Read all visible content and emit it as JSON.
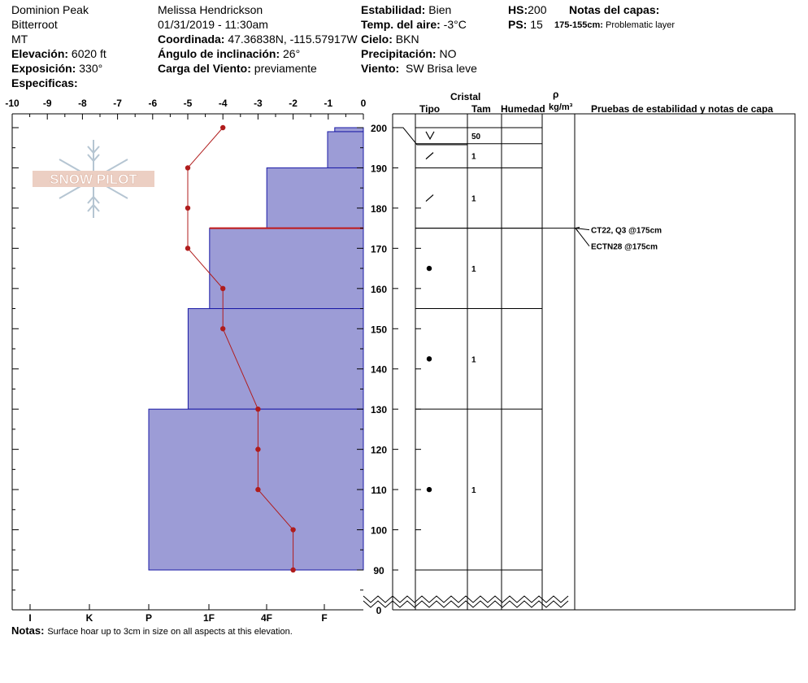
{
  "header": {
    "location": "Dominion Peak",
    "range": "Bitterroot",
    "state": "MT",
    "elevation_label": "Elevación:",
    "elevation_value": "6020 ft",
    "aspect_label": "Exposición:",
    "aspect_value": "330°",
    "specifics_label": "Especificas:",
    "observer": "Melissa Hendrickson",
    "datetime": "01/31/2019 - 11:30am",
    "coords_label": "Coordinada:",
    "coords_value": "47.36838N, -115.57917W",
    "incline_label": "Ángulo de inclinación:",
    "incline_value": "26°",
    "wind_load_label": "Carga del Viento:",
    "wind_load_value": "previamente",
    "stability_label": "Estabilidad:",
    "stability_value": "Bien",
    "air_temp_label": "Temp. del aire:",
    "air_temp_value": "-3°C",
    "sky_label": "Cielo:",
    "sky_value": "BKN",
    "precip_label": "Precipitación:",
    "precip_value": "NO",
    "wind_label": "Viento:",
    "wind_value": "SW Brisa leve",
    "hs_label": "HS:",
    "hs_value": "200",
    "ps_label": "PS:",
    "ps_value": "15",
    "layer_notes_label": "Notas del capas:",
    "layer_note_range": "175-155cm:",
    "layer_note_text": "Problematic layer"
  },
  "watermark": {
    "text": "SNOW PILOT"
  },
  "table_headers": {
    "crystal": "Cristal",
    "type": "Tipo",
    "size": "Tam",
    "moisture": "Humedad",
    "rho": "ρ",
    "density_unit": "kg/m³",
    "tests": "Pruebas de estabilidad y notas de capa"
  },
  "footer": {
    "notes_label": "Notas:",
    "notes_text": "Surface hoar up to 3cm in size on all aspects at this elevation."
  },
  "colors": {
    "hardness_fill": "#9c9cd6",
    "hardness_stroke": "#1a1aa6",
    "temp_line": "#b01c1c",
    "weak_layer": "#c01818"
  },
  "chart_data": {
    "type": "snow-profile",
    "temperature_axis": {
      "min": -10,
      "max": 0,
      "ticks": [
        "-10",
        "-9",
        "-8",
        "-7",
        "-6",
        "-5",
        "-4",
        "-3",
        "-2",
        "-1",
        "0"
      ]
    },
    "hardness_axis": {
      "ticks": [
        "I",
        "K",
        "P",
        "1F",
        "4F",
        "F"
      ]
    },
    "height_axis": {
      "min": 0,
      "max": 200,
      "labels": [
        "200",
        "190",
        "180",
        "170",
        "160",
        "150",
        "140",
        "130",
        "120",
        "110",
        "100",
        "90",
        "0"
      ]
    },
    "temperature_profile": [
      {
        "h": 200,
        "t": -4
      },
      {
        "h": 190,
        "t": -5
      },
      {
        "h": 180,
        "t": -5
      },
      {
        "h": 170,
        "t": -5
      },
      {
        "h": 160,
        "t": -4
      },
      {
        "h": 150,
        "t": -4
      },
      {
        "h": 130,
        "t": -3
      },
      {
        "h": 120,
        "t": -3
      },
      {
        "h": 110,
        "t": -3
      },
      {
        "h": 100,
        "t": -2
      },
      {
        "h": 90,
        "t": -2
      }
    ],
    "hardness_layers": [
      {
        "top": 200,
        "bottom": 199,
        "hardness": 0.8
      },
      {
        "top": 199,
        "bottom": 190,
        "hardness": 1.0
      },
      {
        "top": 190,
        "bottom": 175,
        "hardness": 2.7
      },
      {
        "top": 175,
        "bottom": 155,
        "hardness": 4.3
      },
      {
        "top": 155,
        "bottom": 130,
        "hardness": 4.9
      },
      {
        "top": 130,
        "bottom": 90,
        "hardness": 6.0
      }
    ],
    "weak_layer_height": 175,
    "layer_boundaries": [
      200,
      196,
      190,
      175,
      155,
      130,
      90
    ],
    "crystals": [
      {
        "h": 198,
        "type": "surface-hoar",
        "size": "50"
      },
      {
        "h": 193,
        "type": "decomposing",
        "size": "1"
      },
      {
        "h": 182.5,
        "type": "decomposing",
        "size": "1"
      },
      {
        "h": 165,
        "type": "rounded",
        "size": "1"
      },
      {
        "h": 142.5,
        "type": "rounded",
        "size": "1"
      },
      {
        "h": 110,
        "type": "rounded",
        "size": "1"
      }
    ],
    "stability_tests": [
      {
        "h": 175,
        "label": "CT22, Q3 @175cm"
      },
      {
        "h": 175,
        "label": "ECTN28 @175cm"
      }
    ]
  }
}
